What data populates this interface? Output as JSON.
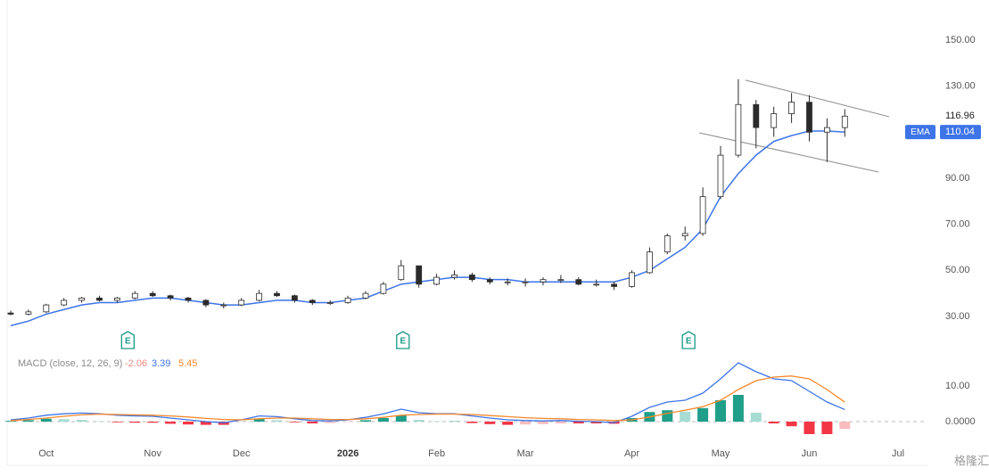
{
  "chart_data": [
    {
      "type": "candlestick",
      "categories": [
        null,
        null,
        "Oct",
        null,
        null,
        null,
        null,
        null,
        "Nov",
        null,
        null,
        null,
        null,
        "Dec",
        null,
        null,
        null,
        null,
        null,
        "2026",
        null,
        null,
        null,
        null,
        "Feb",
        null,
        null,
        null,
        null,
        "Mar",
        null,
        null,
        null,
        null,
        null,
        "Apr",
        null,
        null,
        null,
        null,
        "May",
        null,
        null,
        null,
        null,
        "Jun",
        null,
        null,
        null,
        null,
        "Jul"
      ],
      "open": [
        31.5,
        31,
        32,
        35,
        37,
        38,
        37,
        38,
        40,
        39,
        38,
        37,
        35,
        35,
        37,
        40,
        39,
        37,
        36,
        36,
        38,
        40,
        46,
        52,
        44,
        47,
        48,
        46,
        45,
        45,
        45,
        46,
        46,
        44,
        44,
        43,
        49,
        58,
        65,
        66,
        82,
        100,
        122,
        112,
        118,
        123,
        110,
        112,
        null,
        null,
        null
      ],
      "high": [
        32.5,
        33,
        35.5,
        38,
        38.5,
        39,
        38.5,
        41,
        41,
        39.5,
        38.5,
        37.5,
        36,
        38,
        41.5,
        41,
        39.5,
        37.5,
        37,
        39,
        41,
        45,
        54.5,
        52,
        48.5,
        50,
        49,
        47,
        46.5,
        46.5,
        47,
        48,
        47,
        46,
        45,
        50,
        60,
        66,
        69,
        86,
        104,
        133,
        124,
        121,
        127,
        126,
        116,
        120,
        null,
        null,
        null
      ],
      "low": [
        30.5,
        30.5,
        31.5,
        34.5,
        36,
        36.5,
        36,
        37.5,
        38.5,
        37,
        36,
        34,
        33.5,
        34.5,
        36.5,
        38.5,
        36,
        35,
        35,
        35.5,
        37.5,
        39.5,
        45.5,
        42.5,
        43.5,
        46,
        45,
        44,
        43.5,
        43,
        43.5,
        44.5,
        43.5,
        43,
        41.5,
        42.5,
        48.5,
        57,
        63,
        65,
        81,
        99,
        103,
        108,
        114,
        106,
        97,
        108,
        null,
        null,
        null
      ],
      "close": [
        31,
        32,
        35,
        37,
        38,
        37,
        38,
        40,
        39,
        38,
        37,
        35,
        35,
        37,
        40,
        39,
        37,
        36,
        36,
        38,
        40,
        44,
        52,
        44,
        47,
        48,
        46,
        45,
        45,
        45,
        46,
        46,
        44,
        44,
        43,
        49,
        58,
        65,
        66,
        82,
        100,
        122,
        112,
        118,
        123,
        110,
        112,
        116.96,
        null,
        null,
        null
      ],
      "up_color": "#ffffff",
      "down_color": "#2b2b2b",
      "ema": {
        "name": "EMA",
        "color": "#3d74e8",
        "values": [
          26,
          28,
          31,
          33,
          35,
          36,
          36,
          37,
          38,
          38,
          37,
          36,
          35,
          35,
          36,
          37,
          37,
          36,
          36,
          37,
          38,
          41,
          44,
          45,
          46,
          47,
          47,
          46,
          46,
          45,
          45,
          45,
          45,
          45,
          45,
          47,
          50,
          55,
          60,
          68,
          82,
          92,
          100,
          106,
          108.5,
          110.5,
          110.5,
          110.04,
          null,
          null,
          null
        ]
      },
      "channel": [
        {
          "x": [
            41.4,
            49.5
          ],
          "y": [
            132.6,
            116.7
          ]
        },
        {
          "x": [
            38.8,
            48.9
          ],
          "y": [
            109.7,
            92.7
          ]
        }
      ],
      "earnings": {
        "label": "E",
        "at": [
          6.6,
          22.1,
          38.2
        ]
      },
      "ylim": [
        24.2,
        163.5
      ],
      "yticks": [
        {
          "value": 30,
          "label": "30.00"
        },
        {
          "value": 50,
          "label": "50.00"
        },
        {
          "value": 70,
          "label": "70.00"
        },
        {
          "value": 90,
          "label": "90.00"
        },
        {
          "value": 130,
          "label": "130.00"
        },
        {
          "value": 150,
          "label": "150.00"
        }
      ]
    },
    {
      "type": "macd",
      "title": "MACD (close, 12, 26, 9)",
      "series": [
        {
          "color": "#f28b82",
          "bar": true,
          "values": [
            0.2,
            0.4,
            0.8,
            0.7,
            0.5,
            0.1,
            -0.2,
            -0.3,
            -0.3,
            -0.6,
            -0.8,
            -0.9,
            -0.9,
            0,
            0.8,
            0.4,
            -0.2,
            -0.5,
            -0.4,
            -0.1,
            0.4,
            1,
            1.7,
            0.5,
            0.1,
            0.1,
            -0.4,
            -0.7,
            -0.9,
            -0.8,
            -0.7,
            -0.5,
            -0.5,
            -0.5,
            -0.6,
            1,
            2.7,
            3.2,
            2.8,
            3.8,
            6,
            7.5,
            2.5,
            -0.5,
            -1.3,
            -3.5,
            -3.5,
            -2.06,
            null,
            null,
            null
          ]
        },
        {
          "color": "#3d74e8",
          "values": [
            0.5,
            1,
            1.8,
            2.2,
            2.4,
            2.2,
            1.8,
            1.6,
            1.5,
            1,
            0.5,
            0,
            -0.3,
            0.5,
            1.6,
            1.4,
            0.8,
            0.3,
            0.2,
            0.5,
            1.2,
            2.2,
            3.5,
            2.5,
            2.2,
            2.2,
            1.6,
            1,
            0.5,
            0.3,
            0.2,
            0.3,
            0.1,
            0,
            -0.3,
            1.5,
            4,
            5.5,
            6,
            8,
            12,
            16.5,
            14,
            12,
            11.5,
            8.5,
            5.5,
            3.39,
            null,
            null,
            null
          ]
        },
        {
          "color": "#f6882a",
          "values": [
            0.3,
            0.6,
            1,
            1.5,
            1.9,
            2.1,
            2,
            1.9,
            1.8,
            1.6,
            1.3,
            0.9,
            0.6,
            0.5,
            0.8,
            1,
            1,
            0.8,
            0.6,
            0.6,
            0.8,
            1.2,
            1.8,
            2,
            2.1,
            2.1,
            2,
            1.7,
            1.4,
            1.1,
            0.9,
            0.8,
            0.6,
            0.5,
            0.3,
            0.5,
            1.3,
            2.3,
            3.2,
            4.2,
            6,
            9,
            11.5,
            12.5,
            12.8,
            12,
            9,
            5.45,
            null,
            null,
            null
          ]
        }
      ],
      "ylim": [
        -5.5,
        19.5
      ],
      "yticks": [
        {
          "value": 0,
          "label": "0.0000"
        },
        {
          "value": 10,
          "label": "10.00"
        }
      ]
    }
  ],
  "watermark": "格隆汇"
}
